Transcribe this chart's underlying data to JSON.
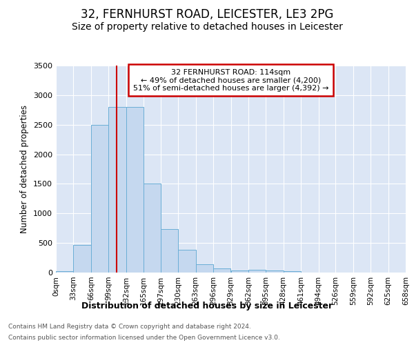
{
  "title": "32, FERNHURST ROAD, LEICESTER, LE3 2PG",
  "subtitle": "Size of property relative to detached houses in Leicester",
  "xlabel": "Distribution of detached houses by size in Leicester",
  "ylabel": "Number of detached properties",
  "footnote1": "Contains HM Land Registry data © Crown copyright and database right 2024.",
  "footnote2": "Contains public sector information licensed under the Open Government Licence v3.0.",
  "annotation_line1": "32 FERNHURST ROAD: 114sqm",
  "annotation_line2": "← 49% of detached houses are smaller (4,200)",
  "annotation_line3": "51% of semi-detached houses are larger (4,392) →",
  "bar_edges": [
    0,
    33,
    66,
    99,
    132,
    165,
    197,
    230,
    263,
    296,
    329,
    362,
    395,
    428,
    461,
    494,
    526,
    559,
    592,
    625,
    658
  ],
  "bar_values": [
    20,
    470,
    2500,
    2800,
    2800,
    1500,
    730,
    380,
    140,
    75,
    40,
    45,
    30,
    20,
    0,
    0,
    0,
    0,
    0,
    0
  ],
  "bar_color": "#c5d8ef",
  "bar_edge_color": "#6aaed6",
  "vline_x": 114,
  "vline_color": "#cc0000",
  "ylim": [
    0,
    3500
  ],
  "yticks": [
    0,
    500,
    1000,
    1500,
    2000,
    2500,
    3000,
    3500
  ],
  "fig_bg_color": "#ffffff",
  "plot_bg_color": "#dce6f5",
  "title_fontsize": 12,
  "subtitle_fontsize": 10,
  "annotation_box_color": "#ffffff",
  "annotation_box_edge": "#cc0000"
}
